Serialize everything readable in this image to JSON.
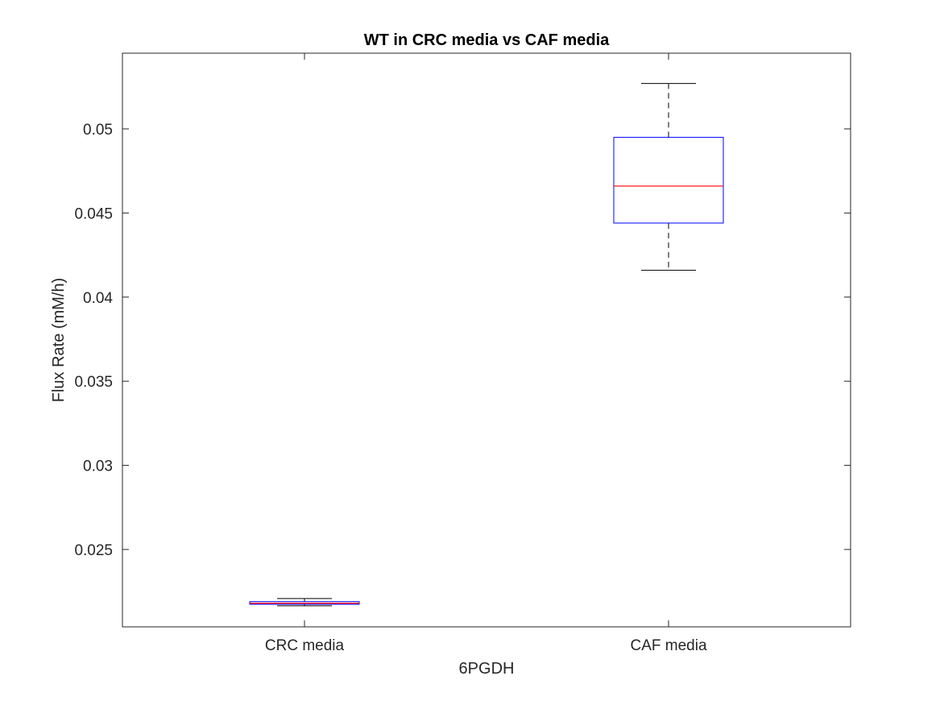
{
  "chart_data": {
    "type": "box",
    "title": "WT in CRC media vs CAF media",
    "xlabel": "6PGDH",
    "ylabel": "Flux Rate (mM/h)",
    "ylim": [
      0.0204,
      0.0545
    ],
    "yticks": [
      0.025,
      0.03,
      0.035,
      0.04,
      0.045,
      0.05
    ],
    "ytick_labels": [
      "0.025",
      "0.03",
      "0.035",
      "0.04",
      "0.045",
      "0.05"
    ],
    "categories": [
      "CRC media",
      "CAF media"
    ],
    "boxes": [
      {
        "category": "CRC media",
        "whisker_low": 0.02165,
        "q1": 0.02174,
        "median": 0.0218,
        "q3": 0.0219,
        "whisker_high": 0.02208
      },
      {
        "category": "CAF media",
        "whisker_low": 0.0416,
        "q1": 0.0444,
        "median": 0.0466,
        "q3": 0.0495,
        "whisker_high": 0.0527
      }
    ],
    "grid": false,
    "legend": "none",
    "colors": {
      "box_edge": "#0000ff",
      "median": "#ff0000",
      "whisker": "#000000",
      "axes": "#262626"
    }
  }
}
